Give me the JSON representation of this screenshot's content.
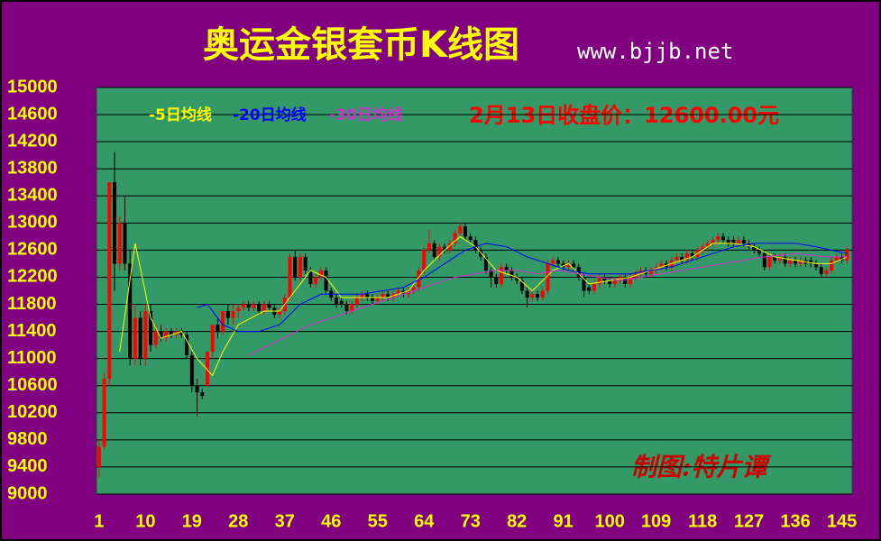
{
  "chart_data": {
    "type": "candlestick",
    "title": "奥运金银套币K线图",
    "subtitle": "www.bjjb.net",
    "annotation": "2月13日收盘价：12600.00元",
    "signature": "制图:特片谭",
    "up_color": "#ff0000",
    "down_color": "#000000",
    "xlim": [
      0.5,
      147
    ],
    "ylim": [
      9000,
      15000
    ],
    "xticks": [
      1,
      10,
      19,
      28,
      37,
      46,
      55,
      64,
      73,
      82,
      91,
      100,
      109,
      118,
      127,
      136,
      145
    ],
    "yticks": [
      9000,
      9400,
      9800,
      10200,
      10600,
      11000,
      11400,
      11800,
      12200,
      12600,
      13000,
      13400,
      13800,
      14200,
      14600,
      15000
    ],
    "grid": true,
    "ohlc": [
      [
        9400,
        9800,
        9250,
        9700
      ],
      [
        9700,
        10800,
        9650,
        10700
      ],
      [
        10700,
        13600,
        10600,
        13600
      ],
      [
        13600,
        14050,
        12000,
        12400
      ],
      [
        12400,
        13100,
        12300,
        13000
      ],
      [
        13000,
        13400,
        12300,
        12400
      ],
      [
        12400,
        12600,
        10900,
        11000
      ],
      [
        11000,
        11800,
        10900,
        11600
      ],
      [
        11600,
        11700,
        10900,
        11000
      ],
      [
        11000,
        11800,
        10900,
        11700
      ],
      [
        11700,
        11800,
        11100,
        11200
      ],
      [
        11200,
        11500,
        11150,
        11400
      ],
      [
        11400,
        11500,
        11250,
        11300
      ],
      [
        11300,
        11450,
        11250,
        11400
      ],
      [
        11400,
        11450,
        11300,
        11350
      ],
      [
        11350,
        11450,
        11300,
        11400
      ],
      [
        11400,
        11450,
        11300,
        11350
      ],
      [
        11350,
        11400,
        11000,
        11050
      ],
      [
        11050,
        11100,
        10500,
        10600
      ],
      [
        10600,
        10700,
        10150,
        10500
      ],
      [
        10500,
        10550,
        10400,
        10450
      ],
      [
        10600,
        11100,
        10600,
        11100
      ],
      [
        11100,
        11500,
        11000,
        11500
      ],
      [
        11500,
        11600,
        11300,
        11400
      ],
      [
        11400,
        11700,
        11350,
        11700
      ],
      [
        11700,
        11800,
        11500,
        11600
      ],
      [
        11600,
        11800,
        11500,
        11700
      ],
      [
        11700,
        11800,
        11600,
        11750
      ],
      [
        11750,
        11850,
        11700,
        11800
      ],
      [
        11800,
        11850,
        11700,
        11750
      ],
      [
        11750,
        11850,
        11700,
        11800
      ],
      [
        11800,
        11850,
        11650,
        11700
      ],
      [
        11700,
        11850,
        11650,
        11800
      ],
      [
        11800,
        11850,
        11700,
        11750
      ],
      [
        11750,
        11800,
        11600,
        11650
      ],
      [
        11650,
        11750,
        11600,
        11700
      ],
      [
        11700,
        11950,
        11650,
        11900
      ],
      [
        11900,
        12550,
        11850,
        12500
      ],
      [
        12500,
        12600,
        12150,
        12200
      ],
      [
        12200,
        12550,
        12150,
        12500
      ],
      [
        12500,
        12550,
        12250,
        12300
      ],
      [
        12300,
        12350,
        12050,
        12100
      ],
      [
        12100,
        12250,
        12050,
        12200
      ],
      [
        12200,
        12350,
        12150,
        12300
      ],
      [
        12300,
        12350,
        11950,
        12000
      ],
      [
        12000,
        12050,
        11850,
        11900
      ],
      [
        11900,
        11950,
        11750,
        11800
      ],
      [
        11850,
        11900,
        11750,
        11800
      ],
      [
        11800,
        11850,
        11650,
        11700
      ],
      [
        11700,
        11850,
        11650,
        11800
      ],
      [
        11800,
        11950,
        11750,
        11900
      ],
      [
        11900,
        12000,
        11850,
        11950
      ],
      [
        11950,
        12000,
        11850,
        11900
      ],
      [
        11900,
        11950,
        11800,
        11850
      ],
      [
        11850,
        11950,
        11800,
        11900
      ],
      [
        11900,
        12000,
        11850,
        11950
      ],
      [
        11950,
        12000,
        11850,
        11900
      ],
      [
        11900,
        12000,
        11850,
        11950
      ],
      [
        11950,
        12050,
        11900,
        12000
      ],
      [
        12000,
        12050,
        11900,
        11950
      ],
      [
        11950,
        12050,
        11900,
        12000
      ],
      [
        12000,
        12100,
        11950,
        12050
      ],
      [
        12050,
        12350,
        12000,
        12300
      ],
      [
        12300,
        12650,
        12250,
        12600
      ],
      [
        12600,
        12900,
        12550,
        12700
      ],
      [
        12700,
        12750,
        12450,
        12500
      ],
      [
        12500,
        12700,
        12450,
        12650
      ],
      [
        12650,
        12700,
        12550,
        12600
      ],
      [
        12600,
        12750,
        12550,
        12700
      ],
      [
        12700,
        12900,
        12650,
        12850
      ],
      [
        12850,
        13000,
        12800,
        12950
      ],
      [
        12950,
        13000,
        12750,
        12800
      ],
      [
        12800,
        12850,
        12700,
        12750
      ],
      [
        12750,
        12800,
        12550,
        12600
      ],
      [
        12600,
        12650,
        12450,
        12500
      ],
      [
        12500,
        12550,
        12250,
        12300
      ],
      [
        12300,
        12350,
        12050,
        12200
      ],
      [
        12200,
        12250,
        12050,
        12100
      ],
      [
        12100,
        12400,
        12050,
        12350
      ],
      [
        12350,
        12400,
        12250,
        12300
      ],
      [
        12300,
        12350,
        12150,
        12200
      ],
      [
        12200,
        12250,
        12100,
        12150
      ],
      [
        12150,
        12200,
        11950,
        12000
      ],
      [
        12000,
        12050,
        11750,
        11900
      ],
      [
        11900,
        12000,
        11850,
        11950
      ],
      [
        11950,
        12000,
        11850,
        11900
      ],
      [
        11900,
        12050,
        11850,
        12000
      ],
      [
        12000,
        12450,
        11950,
        12400
      ],
      [
        12400,
        12500,
        12350,
        12450
      ],
      [
        12450,
        12500,
        12350,
        12400
      ],
      [
        12400,
        12450,
        12300,
        12350
      ],
      [
        12350,
        12450,
        12300,
        12400
      ],
      [
        12400,
        12450,
        12300,
        12350
      ],
      [
        12350,
        12400,
        12150,
        12200
      ],
      [
        12200,
        12250,
        11900,
        12000
      ],
      [
        12050,
        12100,
        11950,
        12000
      ],
      [
        12000,
        12150,
        11950,
        12100
      ],
      [
        12100,
        12250,
        12050,
        12200
      ],
      [
        12200,
        12250,
        12100,
        12150
      ],
      [
        12150,
        12200,
        12050,
        12100
      ],
      [
        12100,
        12200,
        12050,
        12150
      ],
      [
        12150,
        12250,
        12100,
        12200
      ],
      [
        12200,
        12250,
        12050,
        12100
      ],
      [
        12100,
        12250,
        12050,
        12200
      ],
      [
        12200,
        12300,
        12150,
        12250
      ],
      [
        12250,
        12350,
        12200,
        12300
      ],
      [
        12300,
        12350,
        12200,
        12250
      ],
      [
        12250,
        12350,
        12200,
        12300
      ],
      [
        12300,
        12400,
        12250,
        12350
      ],
      [
        12350,
        12450,
        12300,
        12400
      ],
      [
        12400,
        12450,
        12300,
        12350
      ],
      [
        12350,
        12500,
        12300,
        12450
      ],
      [
        12450,
        12550,
        12400,
        12500
      ],
      [
        12500,
        12550,
        12400,
        12450
      ],
      [
        12450,
        12600,
        12400,
        12550
      ],
      [
        12550,
        12600,
        12450,
        12500
      ],
      [
        12500,
        12650,
        12450,
        12600
      ],
      [
        12600,
        12700,
        12550,
        12650
      ],
      [
        12650,
        12750,
        12600,
        12700
      ],
      [
        12700,
        12800,
        12650,
        12750
      ],
      [
        12750,
        12850,
        12700,
        12800
      ],
      [
        12800,
        12850,
        12700,
        12750
      ],
      [
        12750,
        12800,
        12650,
        12700
      ],
      [
        12750,
        12800,
        12650,
        12700
      ],
      [
        12700,
        12800,
        12650,
        12750
      ],
      [
        12750,
        12800,
        12650,
        12700
      ],
      [
        12700,
        12750,
        12600,
        12650
      ],
      [
        12650,
        12700,
        12550,
        12600
      ],
      [
        12600,
        12650,
        12500,
        12550
      ],
      [
        12550,
        12600,
        12300,
        12350
      ],
      [
        12350,
        12550,
        12300,
        12500
      ],
      [
        12500,
        12550,
        12400,
        12450
      ],
      [
        12450,
        12550,
        12400,
        12500
      ],
      [
        12500,
        12550,
        12350,
        12400
      ],
      [
        12400,
        12500,
        12350,
        12450
      ],
      [
        12450,
        12500,
        12350,
        12400
      ],
      [
        12400,
        12500,
        12350,
        12450
      ],
      [
        12450,
        12500,
        12350,
        12400
      ],
      [
        12450,
        12500,
        12350,
        12400
      ],
      [
        12400,
        12450,
        12300,
        12350
      ],
      [
        12350,
        12400,
        12200,
        12250
      ],
      [
        12250,
        12350,
        12200,
        12300
      ],
      [
        12300,
        12500,
        12250,
        12450
      ],
      [
        12450,
        12550,
        12400,
        12500
      ],
      [
        12500,
        12550,
        12400,
        12450
      ],
      [
        12450,
        12650,
        12400,
        12600
      ]
    ],
    "series": [
      {
        "name": "-5日均线",
        "color": "#ffff00",
        "x": [
          5,
          8,
          11,
          13,
          17,
          20,
          23,
          25,
          28,
          33,
          36,
          39,
          42,
          45,
          48,
          52,
          57,
          61,
          64,
          68,
          71,
          74,
          78,
          82,
          85,
          89,
          92,
          96,
          100,
          104,
          108,
          112,
          116,
          120,
          124,
          128,
          132,
          136,
          140,
          143,
          146
        ],
        "values": [
          11100,
          12700,
          11600,
          11300,
          11400,
          11000,
          10750,
          11100,
          11500,
          11700,
          11700,
          12000,
          12300,
          12200,
          11900,
          11900,
          11900,
          12000,
          12300,
          12600,
          12800,
          12650,
          12300,
          12200,
          12000,
          12300,
          12400,
          12100,
          12150,
          12200,
          12300,
          12400,
          12500,
          12700,
          12700,
          12650,
          12500,
          12450,
          12400,
          12400,
          12500
        ]
      },
      {
        "name": "-20日均线",
        "color": "#0000ff",
        "x": [
          20,
          22,
          25,
          28,
          32,
          36,
          40,
          44,
          48,
          52,
          56,
          60,
          64,
          68,
          72,
          76,
          80,
          84,
          88,
          92,
          96,
          100,
          104,
          108,
          112,
          116,
          120,
          124,
          128,
          132,
          136,
          140,
          146
        ],
        "values": [
          11750,
          11800,
          11500,
          11400,
          11400,
          11500,
          11800,
          11950,
          11950,
          11950,
          12000,
          12050,
          12200,
          12400,
          12600,
          12700,
          12650,
          12500,
          12400,
          12300,
          12250,
          12250,
          12250,
          12300,
          12350,
          12450,
          12550,
          12650,
          12700,
          12700,
          12700,
          12650,
          12550
        ]
      },
      {
        "name": "-30日均线",
        "color": "#cc33cc",
        "x": [
          30,
          34,
          38,
          42,
          46,
          50,
          54,
          58,
          62,
          66,
          70,
          74,
          78,
          82,
          86,
          90,
          94,
          98,
          102,
          106,
          110,
          114,
          118,
          122,
          126,
          130,
          136,
          142,
          146
        ],
        "values": [
          11050,
          11200,
          11350,
          11500,
          11600,
          11700,
          11800,
          11900,
          12000,
          12100,
          12200,
          12250,
          12300,
          12300,
          12250,
          12300,
          12250,
          12200,
          12150,
          12200,
          12250,
          12300,
          12350,
          12400,
          12450,
          12500,
          12550,
          12500,
          12500
        ]
      }
    ]
  }
}
